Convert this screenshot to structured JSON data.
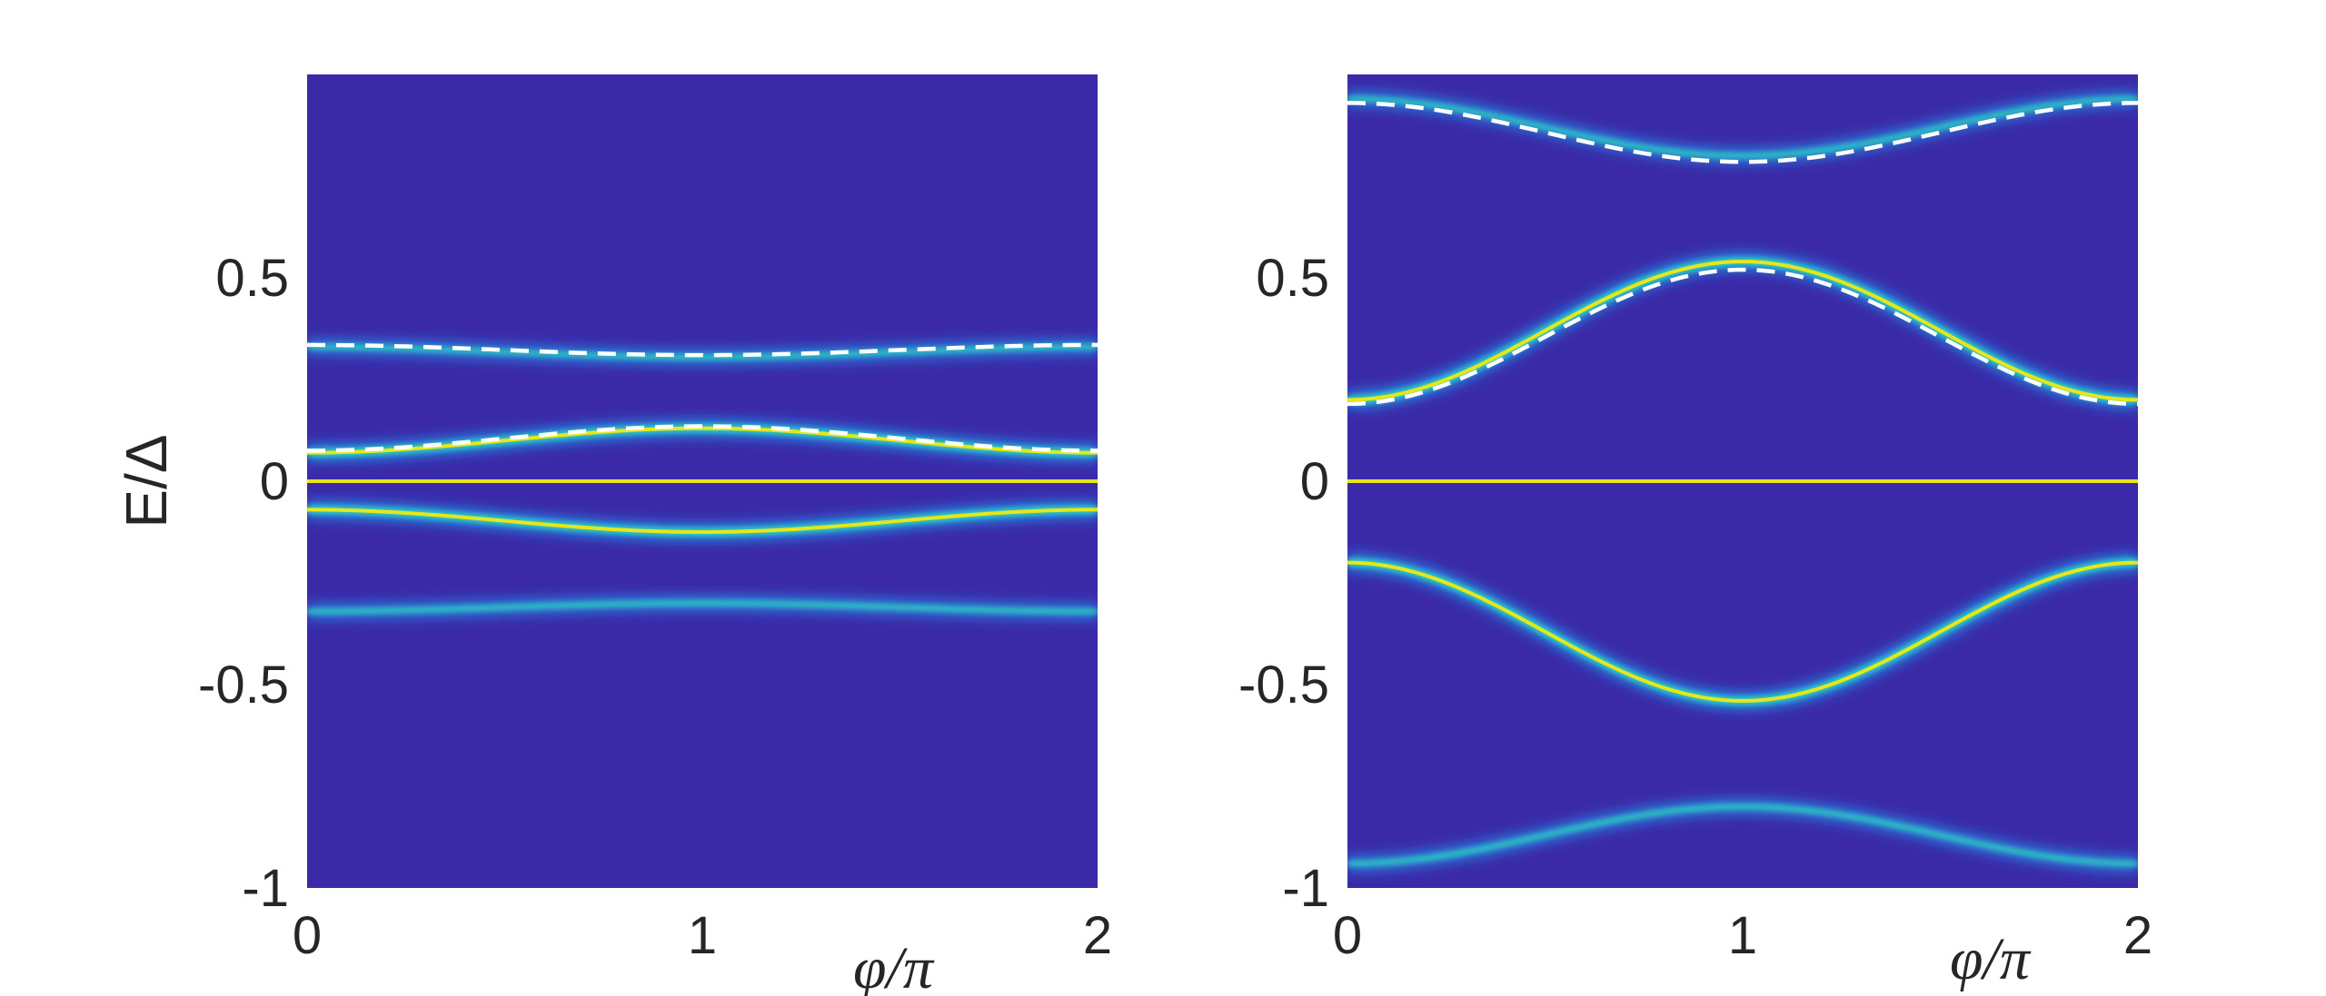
{
  "colors": {
    "background": "#3b2aa8",
    "band_glow": "#1f9cf0",
    "band_mid": "#2fd3c0",
    "band_core": "#e6e61a",
    "fit_line": "#ffffff"
  },
  "chart_data": [
    {
      "type": "heatmap",
      "panel": "left",
      "xlabel": "φ/π",
      "ylabel": "E/Δ",
      "xlim": [
        0,
        2
      ],
      "ylim": [
        -1,
        1
      ],
      "xticks": [
        "0",
        "1",
        "2"
      ],
      "yticks": [
        "-1",
        "-0.5",
        "0",
        "0.5"
      ],
      "bands": [
        {
          "name": "",
          "e_at_phi0": 0.33,
          "e_at_phi1": 0.305,
          "strength": "weak"
        },
        {
          "name": "",
          "e_at_phi0": 0.07,
          "e_at_phi1": 0.13,
          "strength": "strong"
        },
        {
          "name": "",
          "e_at_phi0": 0.0,
          "e_at_phi1": 0.0,
          "strength": "strong"
        },
        {
          "name": "",
          "e_at_phi0": -0.07,
          "e_at_phi1": -0.125,
          "strength": "strong"
        },
        {
          "name": "",
          "e_at_phi0": -0.32,
          "e_at_phi1": -0.3,
          "strength": "weak"
        }
      ],
      "dashed_fits": [
        {
          "name": "",
          "e_at_phi0": 0.335,
          "e_at_phi1": 0.31
        },
        {
          "name": "",
          "e_at_phi0": 0.075,
          "e_at_phi1": 0.135
        }
      ]
    },
    {
      "type": "heatmap",
      "panel": "right",
      "xlabel": "φ/π",
      "ylabel": "",
      "xlim": [
        0,
        2
      ],
      "ylim": [
        -1,
        1
      ],
      "xticks": [
        "0",
        "1",
        "2"
      ],
      "yticks": [
        "-1",
        "-0.5",
        "0",
        "0.5"
      ],
      "bands": [
        {
          "name": "",
          "e_at_phi0": 0.94,
          "e_at_phi1": 0.8,
          "strength": "weak"
        },
        {
          "name": "",
          "e_at_phi0": 0.2,
          "e_at_phi1": 0.54,
          "strength": "strong"
        },
        {
          "name": "",
          "e_at_phi0": 0.0,
          "e_at_phi1": 0.0,
          "strength": "strong"
        },
        {
          "name": "",
          "e_at_phi0": -0.2,
          "e_at_phi1": -0.54,
          "strength": "strong"
        },
        {
          "name": "",
          "e_at_phi0": -0.94,
          "e_at_phi1": -0.8,
          "strength": "weak"
        }
      ],
      "dashed_fits": [
        {
          "name": "",
          "e_at_phi0": 0.93,
          "e_at_phi1": 0.785
        },
        {
          "name": "",
          "e_at_phi0": 0.19,
          "e_at_phi1": 0.52
        }
      ]
    }
  ]
}
